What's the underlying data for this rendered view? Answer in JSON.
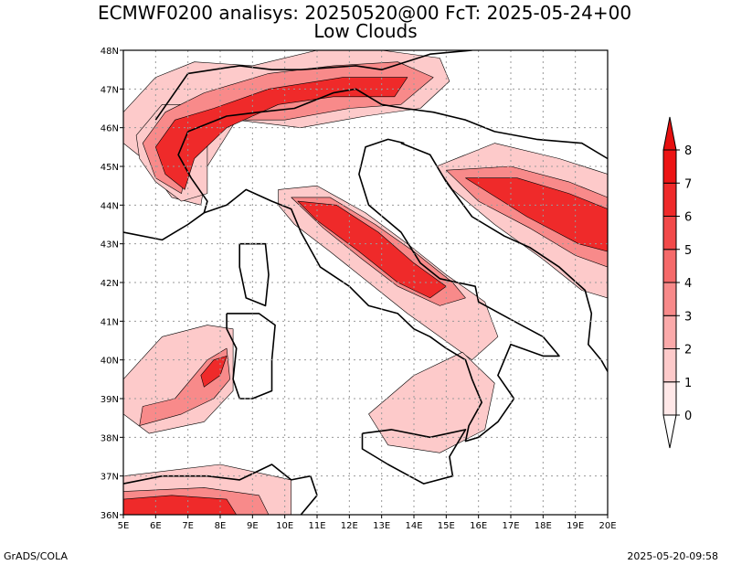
{
  "header": {
    "title_line1": "ECMWF0200 analisys: 20250520@00 FcT: 2025-05-24+00",
    "title_line2": "Low Clouds"
  },
  "footer": {
    "left": "GrADS/COLA",
    "right": "2025-05-20-09:58"
  },
  "map": {
    "lon_min": 5,
    "lon_max": 20,
    "lat_min": 36,
    "lat_max": 48,
    "lon_labels": [
      "5E",
      "6E",
      "7E",
      "8E",
      "9E",
      "10E",
      "11E",
      "12E",
      "13E",
      "14E",
      "15E",
      "16E",
      "17E",
      "18E",
      "19E",
      "20E"
    ],
    "lat_labels": [
      "36N",
      "37N",
      "38N",
      "39N",
      "40N",
      "41N",
      "42N",
      "43N",
      "44N",
      "45N",
      "46N",
      "47N",
      "48N"
    ],
    "grid": "dotted"
  },
  "colorbar": {
    "levels": [
      "0",
      "1",
      "2",
      "3",
      "4",
      "5",
      "6",
      "7",
      "8"
    ],
    "colors": [
      "#ffe8e8",
      "#fdcaca",
      "#fbaaaa",
      "#f88a8a",
      "#f56a6a",
      "#f24a4a",
      "#ef2a2a",
      "#ec1414"
    ],
    "arrow_top_color": "#e61010",
    "arrow_bottom_color": "#ffffff"
  },
  "cloud_areas": [
    {
      "level": 1,
      "region": "alps-north",
      "polygon": [
        [
          5.0,
          46.4
        ],
        [
          6.0,
          47.3
        ],
        [
          7.2,
          47.7
        ],
        [
          9.0,
          47.6
        ],
        [
          11.0,
          48.0
        ],
        [
          13.0,
          48.0
        ],
        [
          14.8,
          47.8
        ],
        [
          15.1,
          47.2
        ],
        [
          14.2,
          46.5
        ],
        [
          12.5,
          46.3
        ],
        [
          10.5,
          46.0
        ],
        [
          8.5,
          46.2
        ],
        [
          7.6,
          45.0
        ],
        [
          7.4,
          44.0
        ],
        [
          6.5,
          44.2
        ],
        [
          5.6,
          45.2
        ],
        [
          5.0,
          45.6
        ]
      ]
    },
    {
      "level": 1,
      "region": "western-alps",
      "polygon": [
        [
          5.4,
          45.8
        ],
        [
          6.2,
          46.6
        ],
        [
          7.0,
          46.6
        ],
        [
          7.6,
          45.8
        ],
        [
          7.6,
          44.3
        ],
        [
          6.8,
          44.1
        ],
        [
          6.0,
          44.6
        ],
        [
          5.5,
          45.2
        ]
      ]
    },
    {
      "level": 1,
      "region": "apennines",
      "polygon": [
        [
          9.8,
          44.4
        ],
        [
          11.0,
          44.5
        ],
        [
          12.5,
          43.8
        ],
        [
          13.8,
          43.0
        ],
        [
          15.0,
          42.2
        ],
        [
          16.2,
          41.5
        ],
        [
          16.6,
          40.6
        ],
        [
          15.8,
          40.0
        ],
        [
          14.8,
          40.6
        ],
        [
          13.8,
          41.2
        ],
        [
          12.6,
          42.0
        ],
        [
          11.4,
          42.8
        ],
        [
          10.3,
          43.5
        ],
        [
          9.8,
          44.0
        ]
      ]
    },
    {
      "level": 1,
      "region": "sardinia",
      "polygon": [
        [
          5.0,
          39.5
        ],
        [
          6.2,
          40.6
        ],
        [
          7.6,
          40.9
        ],
        [
          8.4,
          40.8
        ],
        [
          8.4,
          39.2
        ],
        [
          7.5,
          38.4
        ],
        [
          5.8,
          38.1
        ],
        [
          5.0,
          38.6
        ]
      ]
    },
    {
      "level": 1,
      "region": "balkans",
      "polygon": [
        [
          14.7,
          45.0
        ],
        [
          16.5,
          45.6
        ],
        [
          18.5,
          45.2
        ],
        [
          20.0,
          44.8
        ],
        [
          20.0,
          41.6
        ],
        [
          19.2,
          41.8
        ],
        [
          18.0,
          42.6
        ],
        [
          16.5,
          43.5
        ],
        [
          15.2,
          44.4
        ]
      ]
    },
    {
      "level": 1,
      "region": "south-calabria-sicily",
      "polygon": [
        [
          12.6,
          38.6
        ],
        [
          14.0,
          39.6
        ],
        [
          15.5,
          40.2
        ],
        [
          16.5,
          39.4
        ],
        [
          16.2,
          38.2
        ],
        [
          14.8,
          37.6
        ],
        [
          13.2,
          37.8
        ]
      ]
    },
    {
      "level": 1,
      "region": "north-africa",
      "polygon": [
        [
          5.0,
          36.0
        ],
        [
          10.2,
          36.0
        ],
        [
          10.2,
          36.9
        ],
        [
          8.0,
          37.3
        ],
        [
          5.0,
          37.0
        ]
      ]
    },
    {
      "level": 3,
      "region": "alps-core",
      "polygon": [
        [
          5.6,
          45.6
        ],
        [
          6.3,
          46.4
        ],
        [
          7.5,
          46.9
        ],
        [
          9.5,
          47.4
        ],
        [
          11.5,
          47.6
        ],
        [
          13.5,
          47.7
        ],
        [
          14.6,
          47.3
        ],
        [
          13.6,
          46.6
        ],
        [
          12.0,
          46.5
        ],
        [
          10.0,
          46.2
        ],
        [
          8.2,
          46.2
        ],
        [
          7.0,
          45.2
        ],
        [
          6.8,
          44.3
        ],
        [
          6.0,
          44.7
        ]
      ]
    },
    {
      "level": 3,
      "region": "apennines-core",
      "polygon": [
        [
          10.2,
          44.2
        ],
        [
          11.4,
          44.2
        ],
        [
          12.8,
          43.5
        ],
        [
          14.0,
          42.8
        ],
        [
          15.2,
          42.0
        ],
        [
          15.6,
          41.6
        ],
        [
          14.8,
          41.4
        ],
        [
          13.5,
          41.9
        ],
        [
          12.4,
          42.6
        ],
        [
          11.2,
          43.4
        ]
      ]
    },
    {
      "level": 3,
      "region": "balkans-core",
      "polygon": [
        [
          15.0,
          44.9
        ],
        [
          17.0,
          45.0
        ],
        [
          18.8,
          44.6
        ],
        [
          20.0,
          44.2
        ],
        [
          20.0,
          42.4
        ],
        [
          19.0,
          42.7
        ],
        [
          17.6,
          43.4
        ],
        [
          16.0,
          44.1
        ]
      ]
    },
    {
      "level": 3,
      "region": "sardinia-core",
      "polygon": [
        [
          5.5,
          38.3
        ],
        [
          6.8,
          38.6
        ],
        [
          7.8,
          39.0
        ],
        [
          8.3,
          39.5
        ],
        [
          8.2,
          40.3
        ],
        [
          7.6,
          40.0
        ],
        [
          6.6,
          39.0
        ],
        [
          5.6,
          38.8
        ]
      ]
    },
    {
      "level": 3,
      "region": "africa-core",
      "polygon": [
        [
          5.0,
          36.0
        ],
        [
          9.5,
          36.0
        ],
        [
          9.2,
          36.5
        ],
        [
          7.5,
          36.7
        ],
        [
          5.0,
          36.6
        ]
      ]
    },
    {
      "level": 6,
      "region": "alps-max",
      "polygon": [
        [
          6.0,
          45.5
        ],
        [
          6.6,
          46.2
        ],
        [
          7.8,
          46.5
        ],
        [
          9.5,
          47.0
        ],
        [
          11.8,
          47.3
        ],
        [
          13.8,
          47.3
        ],
        [
          13.4,
          46.8
        ],
        [
          11.5,
          46.8
        ],
        [
          9.8,
          46.6
        ],
        [
          8.2,
          46.0
        ],
        [
          7.2,
          45.2
        ],
        [
          6.9,
          44.4
        ],
        [
          6.3,
          44.8
        ]
      ]
    },
    {
      "level": 6,
      "region": "apennines-max",
      "polygon": [
        [
          10.4,
          44.1
        ],
        [
          11.6,
          44.0
        ],
        [
          12.9,
          43.3
        ],
        [
          14.0,
          42.5
        ],
        [
          15.0,
          41.9
        ],
        [
          14.5,
          41.6
        ],
        [
          13.5,
          42.0
        ],
        [
          12.3,
          42.8
        ],
        [
          11.0,
          43.6
        ]
      ]
    },
    {
      "level": 6,
      "region": "balkans-max",
      "polygon": [
        [
          15.6,
          44.7
        ],
        [
          17.2,
          44.7
        ],
        [
          18.8,
          44.3
        ],
        [
          20.0,
          43.9
        ],
        [
          20.0,
          42.8
        ],
        [
          19.1,
          43.0
        ],
        [
          17.5,
          43.7
        ]
      ]
    },
    {
      "level": 6,
      "region": "sardinia-max",
      "polygon": [
        [
          7.5,
          39.3
        ],
        [
          8.0,
          39.6
        ],
        [
          8.2,
          40.1
        ],
        [
          7.8,
          40.0
        ],
        [
          7.4,
          39.6
        ]
      ]
    },
    {
      "level": 6,
      "region": "africa-max",
      "polygon": [
        [
          5.0,
          36.0
        ],
        [
          8.5,
          36.0
        ],
        [
          8.2,
          36.4
        ],
        [
          6.5,
          36.5
        ],
        [
          5.0,
          36.4
        ]
      ]
    }
  ]
}
